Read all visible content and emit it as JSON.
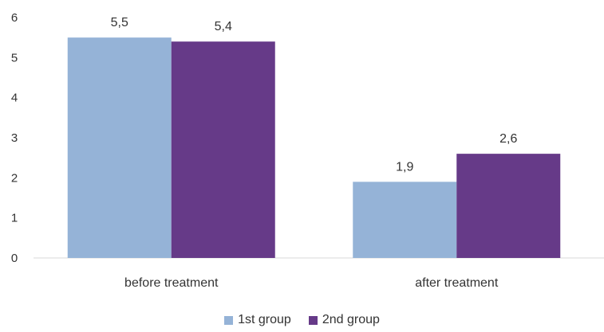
{
  "chart_data": {
    "type": "bar",
    "categories": [
      "before treatment",
      "after treatment"
    ],
    "series": [
      {
        "name": "1st group",
        "values": [
          5.5,
          1.9
        ],
        "labels": [
          "5,5",
          "1,9"
        ],
        "color": "#95b3d7"
      },
      {
        "name": "2nd group",
        "values": [
          5.4,
          2.6
        ],
        "labels": [
          "5,4",
          "2,6"
        ],
        "color": "#663a88"
      }
    ],
    "ylim": [
      0,
      6
    ],
    "yticks": [
      "0",
      "1",
      "2",
      "3",
      "4",
      "5",
      "6"
    ],
    "grid": false,
    "legend_position": "bottom"
  }
}
